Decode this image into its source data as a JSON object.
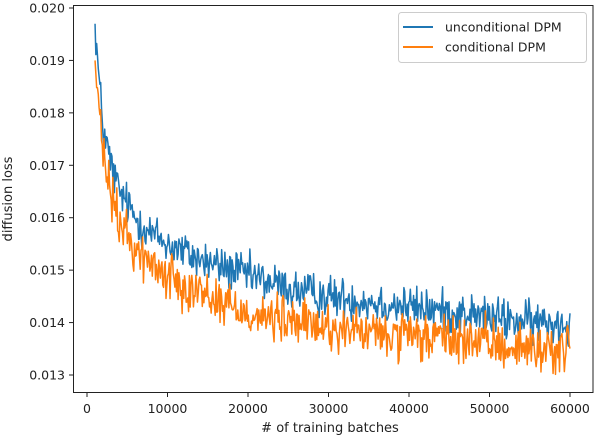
{
  "chart_data": {
    "type": "line",
    "title": "",
    "xlabel": "# of training batches",
    "ylabel": "diffusion loss",
    "xlim": [
      -2900,
      62900
    ],
    "ylim": [
      0.01265,
      0.02005
    ],
    "xticks": [
      0,
      10000,
      20000,
      30000,
      40000,
      50000,
      60000
    ],
    "xtick_labels": [
      "0",
      "10000",
      "20000",
      "30000",
      "40000",
      "50000",
      "60000"
    ],
    "yticks": [
      0.013,
      0.014,
      0.015,
      0.016,
      0.017,
      0.018,
      0.019,
      0.02
    ],
    "ytick_labels": [
      "0.013",
      "0.014",
      "0.015",
      "0.016",
      "0.017",
      "0.018",
      "0.019",
      "0.020"
    ],
    "grid": false,
    "legend_position": "upper right",
    "x_range_of_data": [
      1000,
      60000
    ],
    "series": [
      {
        "name": "unconditional DPM",
        "color": "#1f77b4",
        "trend_x": [
          1000,
          1500,
          2000,
          3000,
          4000,
          6000,
          8000,
          10000,
          14000,
          18000,
          22000,
          26000,
          30000,
          35000,
          40000,
          45000,
          50000,
          55000,
          60000
        ],
        "trend_y": [
          0.0197,
          0.0186,
          0.0177,
          0.017,
          0.0165,
          0.016,
          0.0157,
          0.0155,
          0.0152,
          0.015,
          0.0148,
          0.0146,
          0.0145,
          0.0144,
          0.0143,
          0.0142,
          0.0141,
          0.014,
          0.014
        ],
        "noise": 0.00025
      },
      {
        "name": "conditional DPM",
        "color": "#ff7f0e",
        "trend_x": [
          1000,
          1500,
          2000,
          3000,
          4000,
          6000,
          8000,
          10000,
          14000,
          18000,
          22000,
          26000,
          30000,
          35000,
          40000,
          45000,
          50000,
          55000,
          60000
        ],
        "trend_y": [
          0.019,
          0.018,
          0.0172,
          0.0164,
          0.0159,
          0.0154,
          0.0151,
          0.0149,
          0.0146,
          0.0143,
          0.0141,
          0.014,
          0.0139,
          0.0138,
          0.0137,
          0.0137,
          0.0136,
          0.0135,
          0.0135
        ],
        "noise": 0.00028
      }
    ],
    "data_points_per_series": 590
  }
}
